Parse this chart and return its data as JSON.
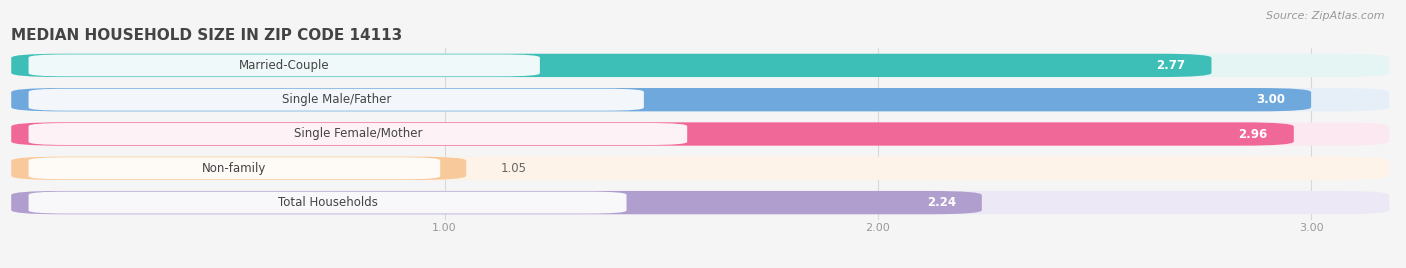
{
  "title": "MEDIAN HOUSEHOLD SIZE IN ZIP CODE 14113",
  "source": "Source: ZipAtlas.com",
  "categories": [
    "Married-Couple",
    "Single Male/Father",
    "Single Female/Mother",
    "Non-family",
    "Total Households"
  ],
  "values": [
    2.77,
    3.0,
    2.96,
    1.05,
    2.24
  ],
  "bar_colors": [
    "#3dbfb8",
    "#6fa8dc",
    "#f06898",
    "#f8c99a",
    "#b09ece"
  ],
  "bar_bg_colors": [
    "#e4f5f4",
    "#e6eff8",
    "#fce8f1",
    "#fdf3e8",
    "#ede8f5"
  ],
  "xlim_min": 0.0,
  "xlim_max": 3.18,
  "data_min": 0.0,
  "data_max": 3.0,
  "xticks": [
    1.0,
    2.0,
    3.0
  ],
  "xtick_labels": [
    "1.00",
    "2.00",
    "3.00"
  ],
  "value_label_inside": [
    true,
    true,
    true,
    false,
    true
  ],
  "background_color": "#ffffff",
  "fig_bg_color": "#f5f5f5",
  "bar_height": 0.68,
  "bar_gap": 0.32,
  "title_fontsize": 11,
  "source_fontsize": 8,
  "label_fontsize": 8.5,
  "value_fontsize": 8.5,
  "tick_fontsize": 8
}
